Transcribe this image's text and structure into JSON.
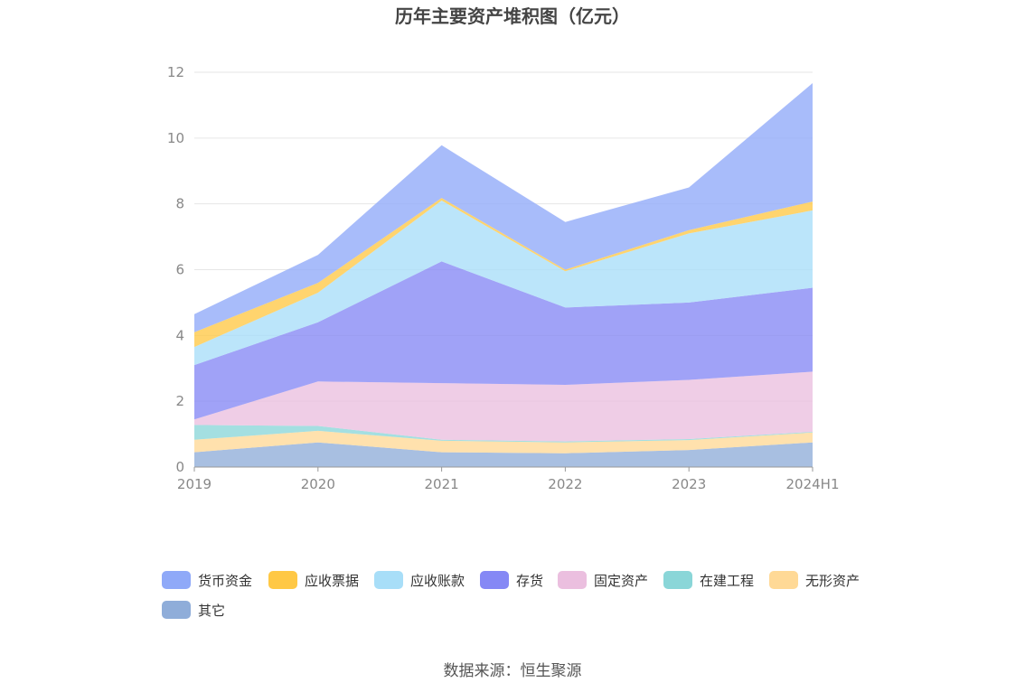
{
  "title": "历年主要资产堆积图（亿元）",
  "source": "数据来源：恒生聚源",
  "chart_data": {
    "type": "area",
    "stacked": true,
    "title": "历年主要资产堆积图（亿元）",
    "categories": [
      "2019",
      "2020",
      "2021",
      "2022",
      "2023",
      "2024H1"
    ],
    "ylim": [
      0,
      12
    ],
    "yticks": [
      0,
      2,
      4,
      6,
      8,
      10,
      12
    ],
    "grid": true,
    "legend_position": "bottom",
    "series": [
      {
        "name": "其它",
        "color": "#8fadd9",
        "values": [
          0.45,
          0.75,
          0.45,
          0.42,
          0.52,
          0.75
        ]
      },
      {
        "name": "无形资产",
        "color": "#ffd996",
        "values": [
          0.38,
          0.35,
          0.35,
          0.33,
          0.3,
          0.3
        ]
      },
      {
        "name": "在建工程",
        "color": "#8ad6d8",
        "values": [
          0.45,
          0.15,
          0.03,
          0.03,
          0.03,
          0.02
        ]
      },
      {
        "name": "固定资产",
        "color": "#ebbfdf",
        "values": [
          0.17,
          1.35,
          1.72,
          1.72,
          1.8,
          1.83
        ]
      },
      {
        "name": "存货",
        "color": "#8588f5",
        "values": [
          1.65,
          1.8,
          3.7,
          2.35,
          2.35,
          2.55
        ]
      },
      {
        "name": "应收账款",
        "color": "#a8def8",
        "values": [
          0.55,
          0.9,
          1.85,
          1.1,
          2.1,
          2.35
        ]
      },
      {
        "name": "应收票据",
        "color": "#ffc845",
        "values": [
          0.45,
          0.3,
          0.08,
          0.05,
          0.1,
          0.27
        ]
      },
      {
        "name": "货币资金",
        "color": "#8fa9f8",
        "values": [
          0.55,
          0.85,
          1.6,
          1.45,
          1.3,
          3.6
        ]
      }
    ]
  },
  "legend": [
    {
      "label": "货币资金",
      "color": "#8fa9f8"
    },
    {
      "label": "应收票据",
      "color": "#ffc845"
    },
    {
      "label": "应收账款",
      "color": "#a8def8"
    },
    {
      "label": "存货",
      "color": "#8588f5"
    },
    {
      "label": "固定资产",
      "color": "#ebbfdf"
    },
    {
      "label": "在建工程",
      "color": "#8ad6d8"
    },
    {
      "label": "无形资产",
      "color": "#ffd996"
    },
    {
      "label": "其它",
      "color": "#8fadd9"
    }
  ]
}
